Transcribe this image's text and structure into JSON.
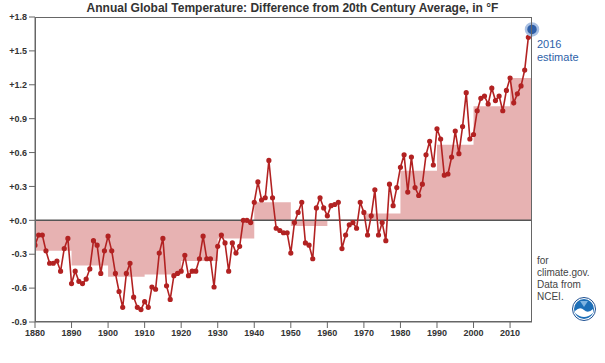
{
  "chart_data": {
    "type": "line",
    "title": "Annual Global Temperature: Difference from 20th Century Average, in °F",
    "x": [
      1880,
      1881,
      1882,
      1883,
      1884,
      1885,
      1886,
      1887,
      1888,
      1889,
      1890,
      1891,
      1892,
      1893,
      1894,
      1895,
      1896,
      1897,
      1898,
      1899,
      1900,
      1901,
      1902,
      1903,
      1904,
      1905,
      1906,
      1907,
      1908,
      1909,
      1910,
      1911,
      1912,
      1913,
      1914,
      1915,
      1916,
      1917,
      1918,
      1919,
      1920,
      1921,
      1922,
      1923,
      1924,
      1925,
      1926,
      1927,
      1928,
      1929,
      1930,
      1931,
      1932,
      1933,
      1934,
      1935,
      1936,
      1937,
      1938,
      1939,
      1940,
      1941,
      1942,
      1943,
      1944,
      1945,
      1946,
      1947,
      1948,
      1949,
      1950,
      1951,
      1952,
      1953,
      1954,
      1955,
      1956,
      1957,
      1958,
      1959,
      1960,
      1961,
      1962,
      1963,
      1964,
      1965,
      1966,
      1967,
      1968,
      1969,
      1970,
      1971,
      1972,
      1973,
      1974,
      1975,
      1976,
      1977,
      1978,
      1979,
      1980,
      1981,
      1982,
      1983,
      1984,
      1985,
      1986,
      1987,
      1988,
      1989,
      1990,
      1991,
      1992,
      1993,
      1994,
      1995,
      1996,
      1997,
      1998,
      1999,
      2000,
      2001,
      2002,
      2003,
      2004,
      2005,
      2006,
      2007,
      2008,
      2009,
      2010,
      2011,
      2012,
      2013,
      2014,
      2015
    ],
    "series": [
      {
        "color": "#b22222",
        "marker": "circle",
        "values": [
          -0.22,
          -0.13,
          -0.13,
          -0.27,
          -0.38,
          -0.38,
          -0.36,
          -0.45,
          -0.25,
          -0.16,
          -0.56,
          -0.45,
          -0.54,
          -0.56,
          -0.52,
          -0.43,
          -0.18,
          -0.22,
          -0.47,
          -0.27,
          -0.14,
          -0.27,
          -0.47,
          -0.63,
          -0.77,
          -0.47,
          -0.38,
          -0.68,
          -0.77,
          -0.79,
          -0.72,
          -0.77,
          -0.59,
          -0.61,
          -0.29,
          -0.16,
          -0.58,
          -0.7,
          -0.49,
          -0.47,
          -0.45,
          -0.31,
          -0.49,
          -0.45,
          -0.45,
          -0.34,
          -0.14,
          -0.34,
          -0.34,
          -0.59,
          -0.23,
          -0.13,
          -0.2,
          -0.45,
          -0.2,
          -0.29,
          -0.23,
          0.0,
          0.0,
          -0.02,
          0.16,
          0.34,
          0.18,
          0.2,
          0.53,
          0.2,
          -0.07,
          -0.09,
          -0.11,
          -0.11,
          -0.29,
          -0.02,
          0.07,
          0.16,
          -0.2,
          -0.22,
          -0.34,
          0.11,
          0.2,
          0.11,
          0.04,
          0.13,
          0.14,
          0.16,
          -0.25,
          -0.13,
          -0.04,
          -0.02,
          -0.07,
          0.16,
          0.07,
          -0.13,
          0.04,
          0.27,
          -0.13,
          -0.02,
          -0.18,
          0.32,
          0.13,
          0.29,
          0.47,
          0.58,
          0.25,
          0.56,
          0.29,
          0.22,
          0.32,
          0.58,
          0.7,
          0.49,
          0.81,
          0.72,
          0.4,
          0.41,
          0.56,
          0.79,
          0.59,
          0.83,
          1.13,
          0.72,
          0.76,
          0.97,
          1.08,
          1.1,
          1.03,
          1.17,
          1.06,
          1.1,
          0.97,
          1.15,
          1.26,
          1.04,
          1.12,
          1.19,
          1.33,
          1.62
        ]
      }
    ],
    "decadal": {
      "type": "area",
      "color": "#e3a5a5",
      "bins": [
        1880,
        1890,
        1900,
        1910,
        1920,
        1930,
        1940,
        1950,
        1960,
        1970,
        1980,
        1990,
        2000,
        2010,
        2016
      ],
      "values": [
        -0.27,
        -0.4,
        -0.5,
        -0.48,
        -0.36,
        -0.16,
        0.16,
        -0.05,
        0.01,
        0.06,
        0.44,
        0.67,
        1.01,
        1.26
      ],
      "baseline": 0
    },
    "estimate": {
      "x": 2016,
      "value": 1.69,
      "label": "2016 estimate",
      "color": "#2e5fa8"
    },
    "note": [
      "for",
      "climate.gov.",
      "Data from",
      "NCEI."
    ],
    "xlim": [
      1880,
      2016
    ],
    "xticks": [
      1880,
      1890,
      1900,
      1910,
      1920,
      1930,
      1940,
      1950,
      1960,
      1970,
      1980,
      1990,
      2000,
      2010
    ],
    "ylim": [
      -0.9,
      1.8
    ],
    "yticks": [
      -0.9,
      -0.6,
      -0.3,
      {
        "value": 0,
        "label": "+0.0"
      },
      {
        "value": 0.3,
        "label": "+0.3"
      },
      {
        "value": 0.6,
        "label": "+0.6"
      },
      {
        "value": 0.9,
        "label": "+0.9"
      },
      {
        "value": 1.2,
        "label": "+1.2"
      },
      {
        "value": 1.5,
        "label": "+1.5"
      },
      {
        "value": 1.8,
        "label": "+1.8"
      }
    ],
    "grid": false
  }
}
